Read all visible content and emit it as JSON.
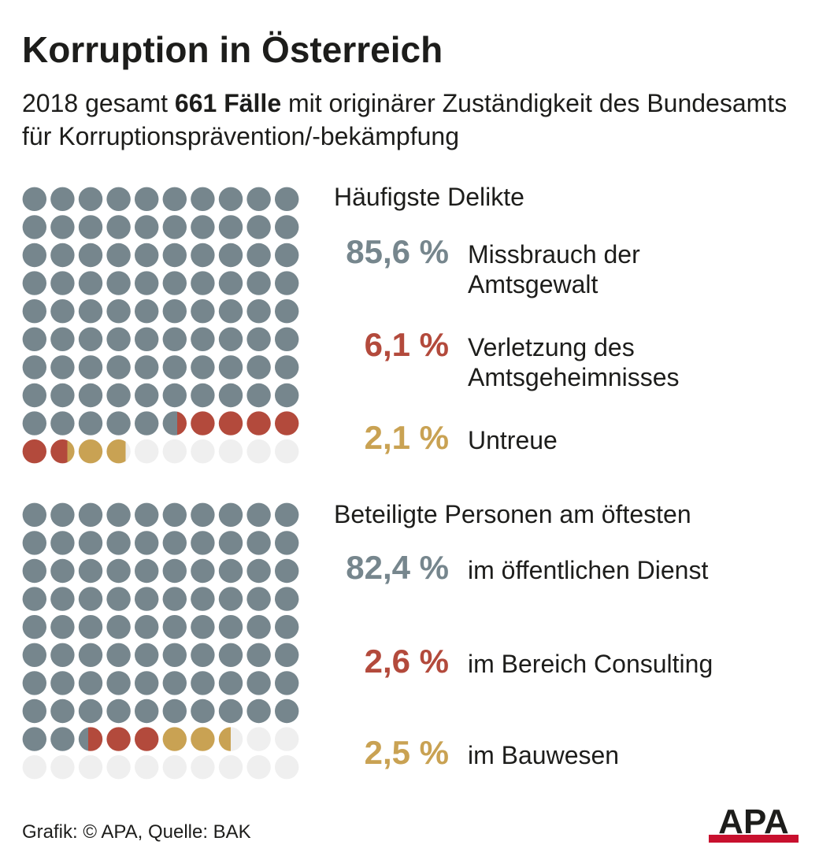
{
  "title": "Korruption in Österreich",
  "subtitle": {
    "pre": "2018 gesamt ",
    "bold": "661 Fälle",
    "post": " mit originärer Zuständigkeit des Bundesamts für Korruptionsprävention/-bekämpfung"
  },
  "colors": {
    "primary": "#76868d",
    "secondary": "#b34a3c",
    "tertiary": "#c9a253",
    "remainder": "#efefef"
  },
  "chart_data": [
    {
      "type": "waffle",
      "title": "Häufigste Delikte",
      "unit": "%",
      "total_dots": 100,
      "series": [
        {
          "value_label": "85,6 %",
          "value": 85.6,
          "label": "Missbrauch der\nAmtsgewalt",
          "color": "#76868d"
        },
        {
          "value_label": "6,1 %",
          "value": 6.1,
          "label": "Verletzung des\nAmtsgeheimnisses",
          "color": "#b34a3c"
        },
        {
          "value_label": "2,1 %",
          "value": 2.1,
          "label": "Untreue",
          "color": "#c9a253"
        }
      ]
    },
    {
      "type": "waffle",
      "title": "Beteiligte Personen am öftesten",
      "unit": "%",
      "total_dots": 100,
      "series": [
        {
          "value_label": "82,4 %",
          "value": 82.4,
          "label": "im öffentlichen Dienst",
          "color": "#76868d"
        },
        {
          "value_label": "2,6 %",
          "value": 2.6,
          "label": "im Bereich Consulting",
          "color": "#b34a3c"
        },
        {
          "value_label": "2,5 %",
          "value": 2.5,
          "label": "im Bauwesen",
          "color": "#c9a253"
        }
      ]
    }
  ],
  "credit": "Grafik: © APA, Quelle: BAK",
  "logo_text": "APA"
}
